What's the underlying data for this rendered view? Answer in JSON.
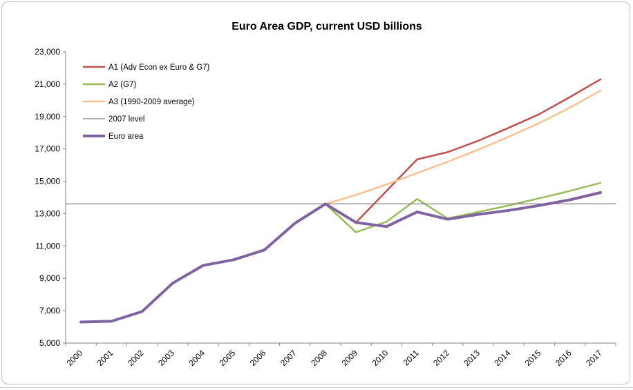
{
  "chart_data": {
    "type": "line",
    "title": "Euro Area GDP, current USD billions",
    "x_categories": [
      "2000",
      "2001",
      "2002",
      "2003",
      "2004",
      "2005",
      "2006",
      "2007",
      "2008",
      "2009",
      "2010",
      "2011",
      "2012",
      "2013",
      "2014",
      "2015",
      "2016",
      "2017"
    ],
    "ylim": [
      5000,
      23000
    ],
    "ytick_step": 2000,
    "ytick_labels": [
      "5,000",
      "7,000",
      "9,000",
      "11,000",
      "13,000",
      "15,000",
      "17,000",
      "19,000",
      "21,000",
      "23,000"
    ],
    "grid": false,
    "legend_position": "top-left-inside",
    "axis_color": "#808080",
    "series": [
      {
        "id": "a1",
        "name": "A1 (Adv Econ ex Euro & G7)",
        "color": "#C0504D",
        "stroke_width": 2.5,
        "start_index": 9,
        "values": [
          12450,
          14400,
          16350,
          16800,
          17500,
          18300,
          19150,
          20200,
          21300
        ]
      },
      {
        "id": "a2",
        "name": "A2 (G7)",
        "color": "#9BBB59",
        "stroke_width": 2.5,
        "start_index": 8,
        "values": [
          13600,
          11850,
          12500,
          13900,
          12700,
          13100,
          13500,
          13950,
          14400,
          14900
        ]
      },
      {
        "id": "a3",
        "name": "A3 (1990-2009 average)",
        "color": "#FAC08F",
        "stroke_width": 2.5,
        "start_index": 8,
        "values": [
          13600,
          14150,
          14800,
          15500,
          16200,
          16950,
          17750,
          18600,
          19550,
          20600
        ]
      },
      {
        "id": "level2007",
        "name": "2007 level",
        "color": "#7F7F7F",
        "stroke_width": 1.25,
        "type": "hline",
        "value": 13600
      },
      {
        "id": "euro",
        "name": "Euro area",
        "color": "#8064A2",
        "stroke_width": 4,
        "start_index": 0,
        "values": [
          6300,
          6350,
          6950,
          8700,
          9800,
          10150,
          10750,
          12400,
          13600,
          12450,
          12200,
          13100,
          12650,
          12950,
          13200,
          13500,
          13850,
          14300
        ]
      }
    ]
  }
}
